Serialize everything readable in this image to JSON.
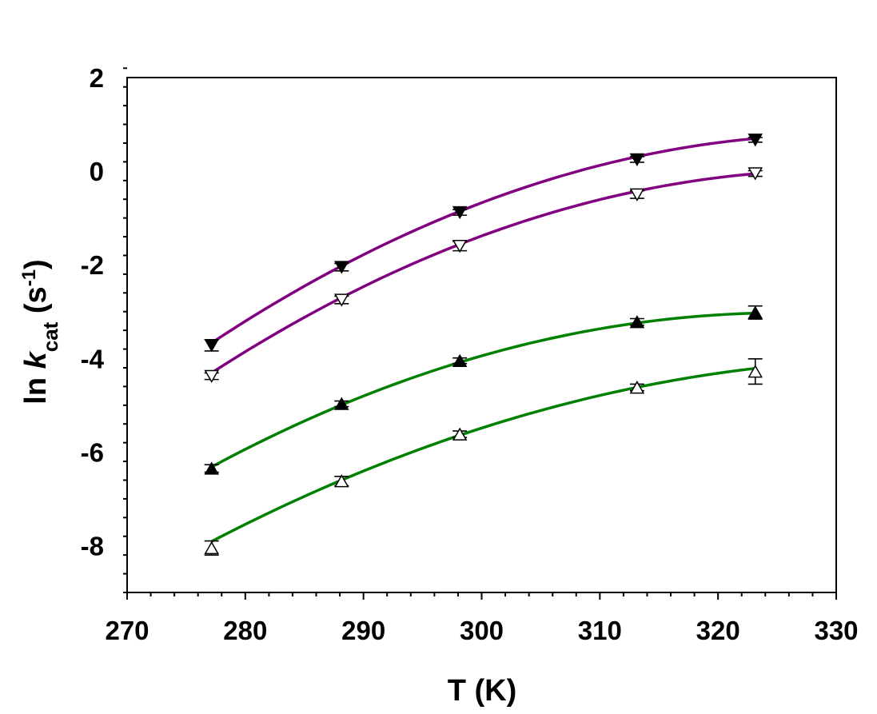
{
  "chart_data": {
    "type": "scatter",
    "xlabel": "T (K)",
    "ylabel": "ln kcat (s-1)",
    "ylabel_parts": {
      "prefix": "ln ",
      "var": "k",
      "sub": "cat",
      "unit_open": " (s",
      "sup": "-1",
      "unit_close": ")"
    },
    "xlim": [
      270,
      330
    ],
    "ylim": [
      -9,
      2
    ],
    "x_ticks": [
      270,
      280,
      290,
      300,
      310,
      320,
      330
    ],
    "y_ticks": [
      2,
      0,
      -2,
      -4,
      -6,
      -8
    ],
    "x_minor_step": 2,
    "y_minor_step": 0.4,
    "grid": false,
    "series": [
      {
        "marker": "triangle-down-filled",
        "color": "#800080",
        "x": [
          277.15,
          288.15,
          298.15,
          313.15,
          323.15
        ],
        "y": [
          -3.72,
          -2.05,
          -0.88,
          0.25,
          0.67
        ],
        "err": [
          0.12,
          0.08,
          0.06,
          0.06,
          0.05
        ],
        "fit": [
          -3.68,
          -2.0,
          -0.86,
          0.29,
          0.71
        ]
      },
      {
        "marker": "triangle-down-open",
        "color": "#800080",
        "x": [
          277.15,
          288.15,
          298.15,
          313.15,
          323.15
        ],
        "y": [
          -4.38,
          -2.75,
          -1.6,
          -0.5,
          -0.05
        ],
        "err": [
          0.07,
          0.08,
          0.1,
          0.08,
          0.06
        ],
        "fit": [
          -4.32,
          -2.68,
          -1.56,
          -0.45,
          -0.04
        ]
      },
      {
        "marker": "triangle-up-filled",
        "color": "#008000",
        "x": [
          277.15,
          288.15,
          298.15,
          313.15,
          323.15
        ],
        "y": [
          -6.35,
          -4.97,
          -4.05,
          -3.22,
          -3.02
        ],
        "err": [
          0.08,
          0.06,
          0.06,
          0.07,
          0.14
        ],
        "fit": [
          -6.32,
          -4.99,
          -4.08,
          -3.25,
          -3.03
        ]
      },
      {
        "marker": "triangle-up-open",
        "color": "#008000",
        "x": [
          277.15,
          288.15,
          298.15,
          313.15,
          323.15
        ],
        "y": [
          -8.05,
          -6.62,
          -5.62,
          -4.62,
          -4.28
        ],
        "err": [
          0.15,
          0.1,
          0.07,
          0.07,
          0.27
        ],
        "fit": [
          -7.92,
          -6.58,
          -5.64,
          -4.64,
          -4.2
        ]
      }
    ]
  }
}
